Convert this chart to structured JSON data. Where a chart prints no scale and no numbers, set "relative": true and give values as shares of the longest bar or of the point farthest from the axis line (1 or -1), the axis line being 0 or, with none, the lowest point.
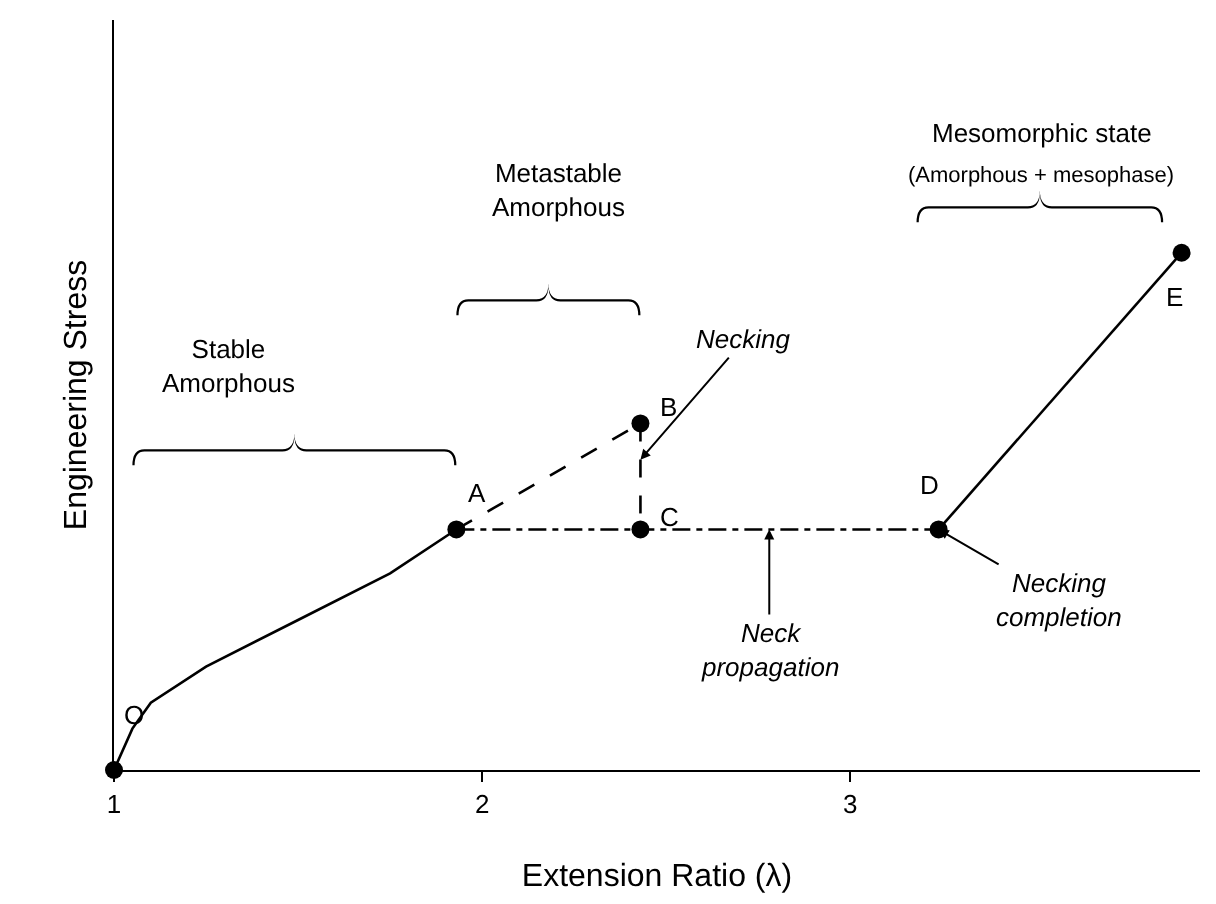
{
  "chart_data": {
    "type": "line",
    "relative": true,
    "xlabel": "Extension Ratio (λ)",
    "ylabel": "Engineering Stress",
    "xlim": [
      1,
      3.95
    ],
    "xticks": [
      1,
      2,
      3
    ],
    "series": [
      {
        "color": "#000000",
        "line_style": "solid",
        "marker": "none",
        "x": [
          1,
          1.05,
          1.1,
          1.25,
          1.5,
          1.75,
          1.93
        ],
        "values": [
          0,
          0.08,
          0.13,
          0.2,
          0.29,
          0.38,
          0.465
        ]
      },
      {
        "color": "#000000",
        "line_style": "dashed",
        "marker": "none",
        "x": [
          1.93,
          2.43
        ],
        "values": [
          0.465,
          0.67
        ]
      },
      {
        "color": "#000000",
        "line_style": "dashed",
        "marker": "none",
        "x": [
          2.43,
          2.43
        ],
        "values": [
          0.67,
          0.465
        ]
      },
      {
        "color": "#000000",
        "line_style": "dashdot",
        "marker": "none",
        "x": [
          1.93,
          2.43,
          3.24
        ],
        "values": [
          0.465,
          0.465,
          0.465
        ]
      },
      {
        "color": "#000000",
        "line_style": "solid",
        "marker": "none",
        "x": [
          3.24,
          3.9
        ],
        "values": [
          0.465,
          1
        ]
      },
      {
        "type": "scatter",
        "color": "#000000",
        "marker": "circle",
        "x": [
          1,
          1.93,
          2.43,
          2.43,
          3.24,
          3.9
        ],
        "values": [
          0,
          0.465,
          0.67,
          0.465,
          0.465,
          1
        ]
      }
    ],
    "annotations": [
      {
        "text": "O",
        "x": 1,
        "y": 0
      },
      {
        "text": "A",
        "x": 1.93,
        "y": 0.465
      },
      {
        "text": "B",
        "x": 2.43,
        "y": 0.67
      },
      {
        "text": "C",
        "x": 2.43,
        "y": 0.465
      },
      {
        "text": "D",
        "x": 3.24,
        "y": 0.465
      },
      {
        "text": "E",
        "x": 3.9,
        "y": 1
      },
      "Stable\nAmorphous",
      "Metastable\nAmorphous",
      "Mesomorphic state",
      "(Amorphous + mesophase)",
      {
        "text": "Necking",
        "x": 2.43,
        "y": 0.6
      },
      {
        "text": "Neck\npropagation",
        "x": 2.78,
        "y": 0.465
      },
      {
        "text": "Necking\ncompletion",
        "x": 3.24,
        "y": 0.465
      }
    ]
  }
}
